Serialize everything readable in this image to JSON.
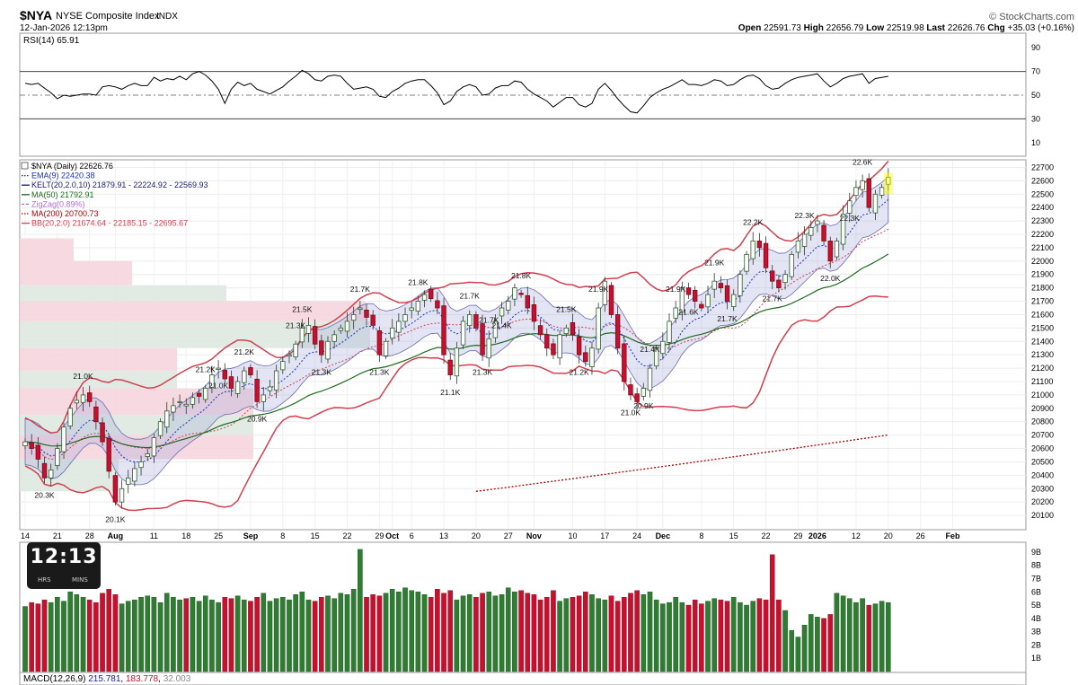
{
  "header": {
    "symbol": "$NYA",
    "name": "NYSE Composite Index",
    "exchange": "INDX",
    "datetime": "12-Jan-2026 12:13pm",
    "brand": "© StockCharts.com",
    "ohlc": {
      "open_label": "Open",
      "open": "22591.73",
      "high_label": "High",
      "high": "22656.79",
      "low_label": "Low",
      "low": "22519.98",
      "last_label": "Last",
      "last": "22626.76",
      "chg_label": "Chg",
      "chg": "+35.03 (+0.16%)"
    }
  },
  "clock": {
    "hours": "12",
    "minutes": "13",
    "sep": ":",
    "hrs_label": "HRS",
    "mins_label": "MINS"
  },
  "colors": {
    "up": "#2e7d32",
    "down": "#c8102e",
    "ema": "#1a2fbf",
    "kelt": "#6a6ab0",
    "ma50": "#1f6b1f",
    "zigzag": "#b070d0",
    "ma200": "#b00000",
    "bb": "#d04050",
    "rsi": "#000000",
    "macd": "#1a1aa0"
  },
  "legend": [
    {
      "text": "$NYA (Daily) 22626.76",
      "color": "#000000",
      "style": "none"
    },
    {
      "text": "EMA(9) 22420.38",
      "color": "#1a2fbf",
      "style": "dotted"
    },
    {
      "text": "KELT(20,2.0,10) 21879.91 - 22224.92 - 22569.93",
      "color": "#1a1a6e",
      "style": "solid"
    },
    {
      "text": "MA(50) 21792.91",
      "color": "#1f6b1f",
      "style": "solid"
    },
    {
      "text": "ZigZag(0.89%)",
      "color": "#b070d0",
      "style": "dashed"
    },
    {
      "text": "MA(200) 20700.73",
      "color": "#b00000",
      "style": "dotted"
    },
    {
      "text": "BB(20,2.0) 21674.64 - 22185.15 - 22695.67",
      "color": "#d04050",
      "style": "solid"
    }
  ],
  "rsi": {
    "label": "RSI(14) 65.91",
    "ticks": [
      "90",
      "70",
      "50",
      "30",
      "10"
    ]
  },
  "macd_label": {
    "name": "MACD(12,26,9)",
    "v1": "215.781",
    "v2": "183.778",
    "v3": "32.003"
  },
  "chart_data": {
    "type": "candlestick",
    "y_axis": {
      "ticks": [
        "22700",
        "22600",
        "22500",
        "22400",
        "22300",
        "22200",
        "22100",
        "22000",
        "21900",
        "21800",
        "21700",
        "21600",
        "21500",
        "21400",
        "21300",
        "21200",
        "21100",
        "21000",
        "20900",
        "20800",
        "20700",
        "20600",
        "20500",
        "20400",
        "20300",
        "20200",
        "20100"
      ],
      "ylim": [
        20000,
        22750
      ]
    },
    "x_ticks": [
      {
        "label": "14",
        "i": 0
      },
      {
        "label": "21",
        "i": 5
      },
      {
        "label": "28",
        "i": 10
      },
      {
        "label": "Aug",
        "i": 14
      },
      {
        "label": "11",
        "i": 20
      },
      {
        "label": "18",
        "i": 25
      },
      {
        "label": "25",
        "i": 30
      },
      {
        "label": "Sep",
        "i": 35
      },
      {
        "label": "8",
        "i": 40
      },
      {
        "label": "15",
        "i": 45
      },
      {
        "label": "22",
        "i": 50
      },
      {
        "label": "29",
        "i": 55
      },
      {
        "label": "Oct",
        "i": 57
      },
      {
        "label": "6",
        "i": 60
      },
      {
        "label": "13",
        "i": 65
      },
      {
        "label": "20",
        "i": 70
      },
      {
        "label": "27",
        "i": 75
      },
      {
        "label": "Nov",
        "i": 79
      },
      {
        "label": "10",
        "i": 85
      },
      {
        "label": "17",
        "i": 90
      },
      {
        "label": "24",
        "i": 95
      },
      {
        "label": "Dec",
        "i": 99
      },
      {
        "label": "8",
        "i": 105
      },
      {
        "label": "15",
        "i": 110
      },
      {
        "label": "22",
        "i": 115
      },
      {
        "label": "29",
        "i": 120
      },
      {
        "label": "2026",
        "i": 123
      },
      {
        "label": "12",
        "i": 129
      },
      {
        "label": "20",
        "i": 134
      },
      {
        "label": "26",
        "i": 139
      },
      {
        "label": "Feb",
        "i": 144
      }
    ],
    "closes": [
      20650,
      20600,
      20520,
      20380,
      20440,
      20600,
      20760,
      20900,
      20960,
      21000,
      20950,
      20800,
      20650,
      20430,
      20200,
      20300,
      20380,
      20450,
      20500,
      20560,
      20680,
      20800,
      20880,
      20920,
      20950,
      20930,
      20980,
      20990,
      21050,
      21150,
      21200,
      21120,
      21050,
      21100,
      21180,
      21150,
      20950,
      21000,
      21060,
      21180,
      21250,
      21300,
      21380,
      21500,
      21520,
      21380,
      21300,
      21400,
      21450,
      21500,
      21550,
      21600,
      21650,
      21580,
      21520,
      21300,
      21400,
      21500,
      21550,
      21600,
      21650,
      21700,
      21750,
      21720,
      21650,
      21300,
      21150,
      21350,
      21550,
      21600,
      21500,
      21300,
      21420,
      21550,
      21650,
      21700,
      21800,
      21750,
      21650,
      21550,
      21450,
      21350,
      21300,
      21450,
      21500,
      21450,
      21300,
      21250,
      21350,
      21650,
      21850,
      21600,
      21350,
      21100,
      21000,
      20950,
      21050,
      21200,
      21350,
      21400,
      21550,
      21650,
      21800,
      21750,
      21700,
      21650,
      21750,
      21850,
      21800,
      21700,
      21750,
      21900,
      22050,
      22150,
      22100,
      21950,
      21850,
      21800,
      21900,
      22050,
      22150,
      22200,
      22250,
      22300,
      22150,
      22000,
      22150,
      22350,
      22450,
      22550,
      22600,
      22400,
      22500,
      22550,
      22626.76
    ],
    "rsi_values": [
      60,
      59,
      60,
      56,
      52,
      47,
      50,
      49,
      50,
      51,
      51,
      50,
      57,
      58,
      57,
      55,
      58,
      60,
      58,
      58,
      65,
      62,
      64,
      63,
      66,
      63,
      68,
      70,
      67,
      62,
      55,
      43,
      55,
      61,
      58,
      60,
      55,
      53,
      51,
      54,
      57,
      62,
      66,
      71,
      68,
      63,
      62,
      66,
      67,
      66,
      60,
      55,
      56,
      57,
      55,
      49,
      48,
      53,
      56,
      60,
      62,
      63,
      63,
      58,
      52,
      42,
      45,
      53,
      57,
      59,
      57,
      50,
      51,
      56,
      58,
      58,
      62,
      61,
      55,
      51,
      48,
      45,
      40,
      44,
      48,
      48,
      42,
      40,
      43,
      55,
      60,
      54,
      47,
      41,
      36,
      35,
      41,
      48,
      52,
      55,
      57,
      60,
      63,
      59,
      59,
      58,
      60,
      63,
      62,
      58,
      59,
      63,
      66,
      67,
      64,
      58,
      55,
      56,
      60,
      63,
      65,
      66,
      67,
      68,
      62,
      57,
      60,
      64,
      66,
      67,
      68,
      60,
      64,
      65,
      65.91
    ],
    "volume_values": [
      4.9,
      5.2,
      5.1,
      5.4,
      5.2,
      5.6,
      5.3,
      6.0,
      5.8,
      5.6,
      5.4,
      5.2,
      5.9,
      6.2,
      5.8,
      5.1,
      5.3,
      5.4,
      5.6,
      5.7,
      5.6,
      5.2,
      5.9,
      5.6,
      5.4,
      5.5,
      5.6,
      5.3,
      5.7,
      5.4,
      5.2,
      5.6,
      5.5,
      5.7,
      5.4,
      5.3,
      5.6,
      5.9,
      5.3,
      5.5,
      5.6,
      5.4,
      5.8,
      6.0,
      5.4,
      5.3,
      5.6,
      5.7,
      5.5,
      5.9,
      5.8,
      6.2,
      9.2,
      5.6,
      5.8,
      5.7,
      5.9,
      6.2,
      6.0,
      6.3,
      6.1,
      6.0,
      5.8,
      5.6,
      6.2,
      5.9,
      6.1,
      5.4,
      5.7,
      5.8,
      5.6,
      5.9,
      6.0,
      5.7,
      5.8,
      6.3,
      6.0,
      6.1,
      5.9,
      5.8,
      5.4,
      5.6,
      6.1,
      5.3,
      5.5,
      5.6,
      5.7,
      6.0,
      5.8,
      5.5,
      5.4,
      5.7,
      5.3,
      5.6,
      5.9,
      6.1,
      5.8,
      6.0,
      5.4,
      5.1,
      5.2,
      5.6,
      5.2,
      5.0,
      5.4,
      5.1,
      5.3,
      5.5,
      5.4,
      5.3,
      5.6,
      5.2,
      5.0,
      5.3,
      5.5,
      5.4,
      8.8,
      5.4,
      4.6,
      3.1,
      2.6,
      3.5,
      4.3,
      4.1,
      4.0,
      4.3,
      5.9,
      5.7,
      5.5,
      5.2,
      5.5,
      5.0,
      5.1,
      5.3,
      5.2
    ],
    "overlay_levels": {
      "ma200_end": 20700.73,
      "ma50_end": 21792.91,
      "ema9_end": 22420.38,
      "bb_upper_end": 22695.67,
      "bb_lower_end": 21674.64
    },
    "peak_labels": [
      {
        "i": 3,
        "text": "20.3K",
        "pos": "below"
      },
      {
        "i": 9,
        "text": "21.0K",
        "pos": "above"
      },
      {
        "i": 14,
        "text": "20.1K",
        "pos": "below"
      },
      {
        "i": 28,
        "text": "21.2K",
        "pos": "above"
      },
      {
        "i": 30,
        "text": "21.0K",
        "pos": "below"
      },
      {
        "i": 34,
        "text": "21.2K",
        "pos": "above"
      },
      {
        "i": 36,
        "text": "20.9K",
        "pos": "below"
      },
      {
        "i": 42,
        "text": "21.3K",
        "pos": "above"
      },
      {
        "i": 43,
        "text": "21.5K",
        "pos": "above"
      },
      {
        "i": 46,
        "text": "21.3K",
        "pos": "below"
      },
      {
        "i": 52,
        "text": "21.7K",
        "pos": "above"
      },
      {
        "i": 55,
        "text": "21.3K",
        "pos": "below"
      },
      {
        "i": 61,
        "text": "21.8K",
        "pos": "above"
      },
      {
        "i": 66,
        "text": "21.1K",
        "pos": "below"
      },
      {
        "i": 69,
        "text": "21.7K",
        "pos": "above"
      },
      {
        "i": 71,
        "text": "21.3K",
        "pos": "below"
      },
      {
        "i": 72,
        "text": "21.7K",
        "pos": "above"
      },
      {
        "i": 74,
        "text": "21.4K",
        "pos": "below"
      },
      {
        "i": 77,
        "text": "21.8K",
        "pos": "above"
      },
      {
        "i": 84,
        "text": "21.5K",
        "pos": "above"
      },
      {
        "i": 86,
        "text": "21.2K",
        "pos": "below"
      },
      {
        "i": 89,
        "text": "21.9K",
        "pos": "above"
      },
      {
        "i": 94,
        "text": "21.0K",
        "pos": "below"
      },
      {
        "i": 96,
        "text": "20.9K",
        "pos": "below"
      },
      {
        "i": 97,
        "text": "21.4K",
        "pos": "above"
      },
      {
        "i": 101,
        "text": "21.9K",
        "pos": "above"
      },
      {
        "i": 103,
        "text": "21.6K",
        "pos": "below"
      },
      {
        "i": 107,
        "text": "21.9K",
        "pos": "above"
      },
      {
        "i": 109,
        "text": "21.7K",
        "pos": "below"
      },
      {
        "i": 113,
        "text": "22.2K",
        "pos": "above"
      },
      {
        "i": 116,
        "text": "21.7K",
        "pos": "below"
      },
      {
        "i": 121,
        "text": "22.3K",
        "pos": "above"
      },
      {
        "i": 125,
        "text": "22.0K",
        "pos": "below"
      },
      {
        "i": 128,
        "text": "22.3K",
        "pos": "below"
      },
      {
        "i": 130,
        "text": "22.6K",
        "pos": "above"
      }
    ],
    "volume_ticks": [
      "9B",
      "8B",
      "7B",
      "6B",
      "5B",
      "4B",
      "3B",
      "2B",
      "1B"
    ]
  }
}
